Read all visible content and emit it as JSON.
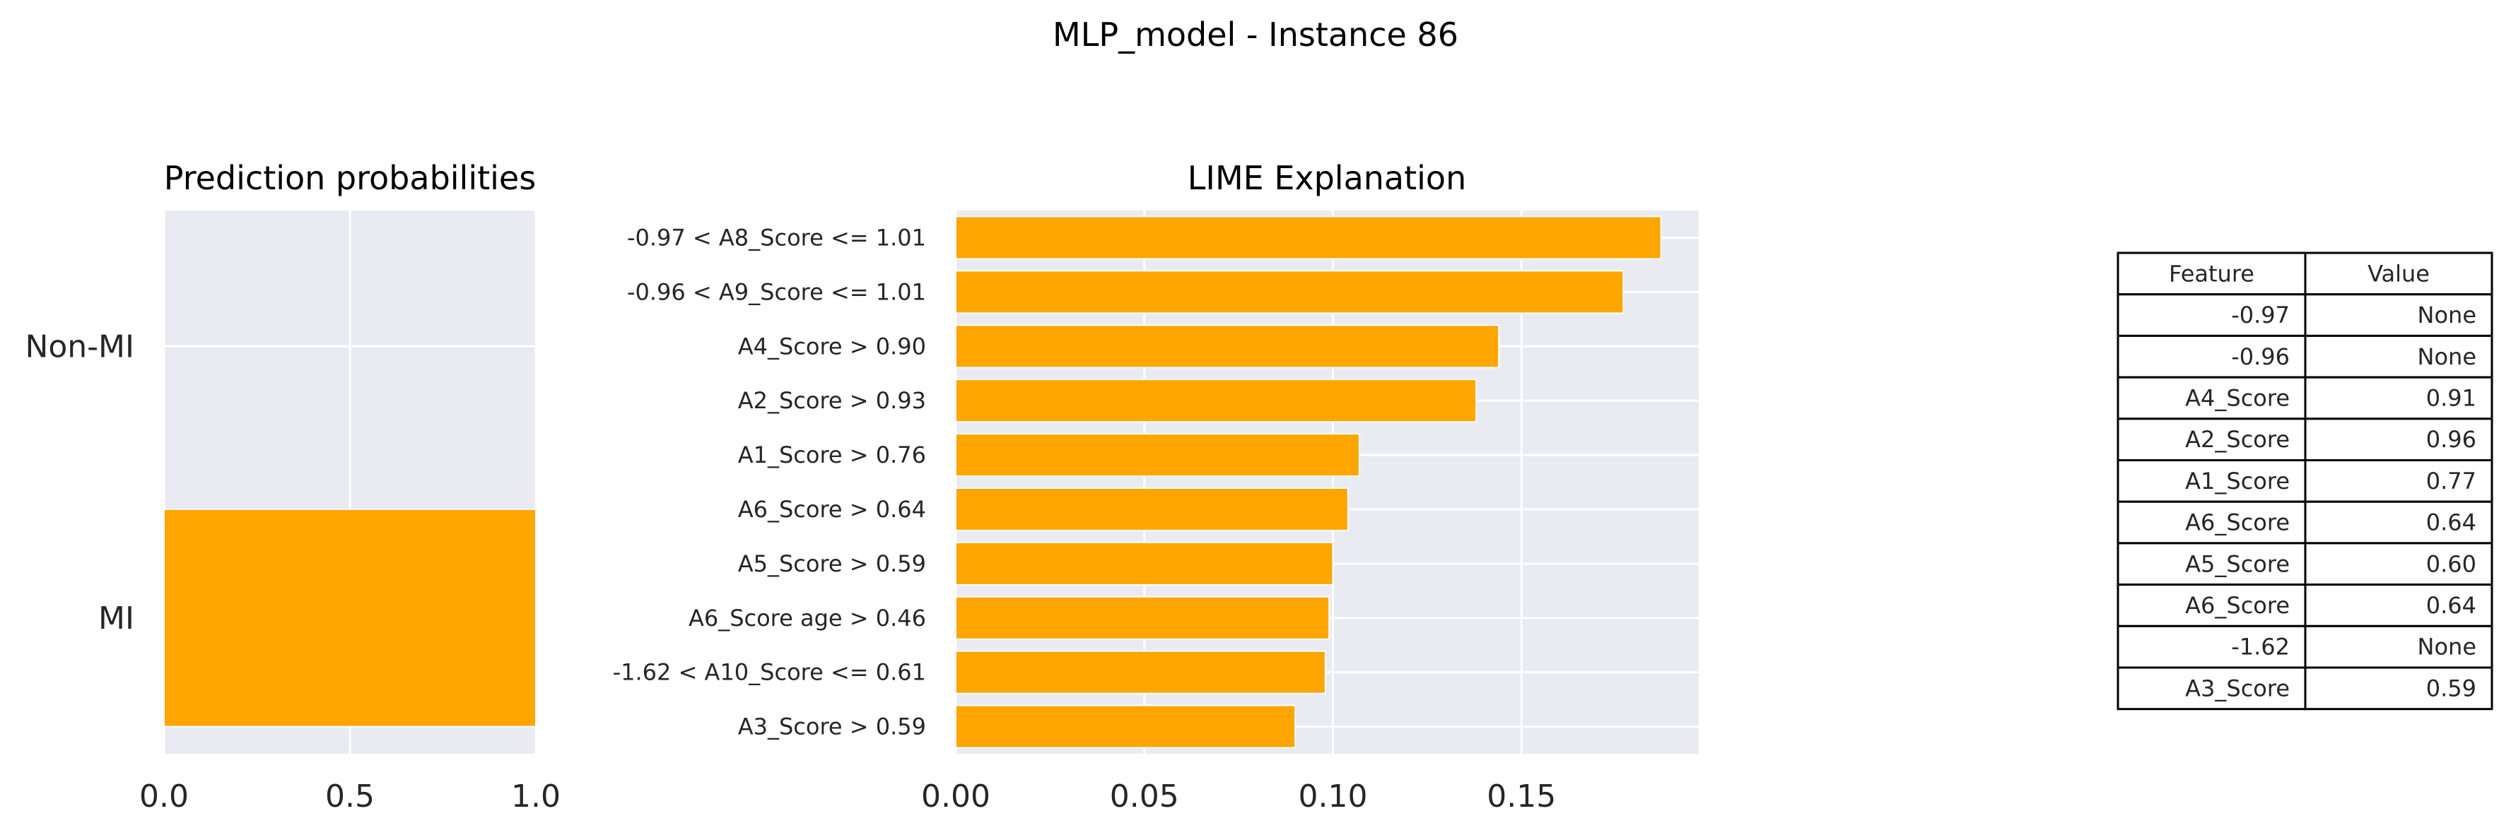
{
  "figure_title": "MLP_model - Instance 86",
  "chart_data": [
    {
      "type": "bar",
      "orientation": "horizontal",
      "title": "Prediction probabilities",
      "categories": [
        "Non-MI",
        "MI"
      ],
      "values": [
        0.0,
        1.0
      ],
      "xlim": [
        0,
        1
      ],
      "xticks": [
        "0.0",
        "0.5",
        "1.0"
      ],
      "grid": true,
      "colors": {
        "bar": "#FFA500",
        "background": "#EAEAF2",
        "grid": "#FFFFFF"
      }
    },
    {
      "type": "bar",
      "orientation": "horizontal",
      "title": "LIME Explanation",
      "categories": [
        "-0.97 < A8_Score <= 1.01",
        "-0.96 < A9_Score <= 1.01",
        "A4_Score > 0.90",
        "A2_Score > 0.93",
        "A1_Score > 0.76",
        "A6_Score > 0.64",
        "A5_Score > 0.59",
        "A6_Score age > 0.46",
        "-1.62 < A10_Score <= 0.61",
        "A3_Score > 0.59"
      ],
      "values": [
        0.187,
        0.177,
        0.144,
        0.138,
        0.107,
        0.104,
        0.1,
        0.099,
        0.098,
        0.09
      ],
      "xlim": [
        0,
        0.197
      ],
      "xticks": [
        "0.00",
        "0.05",
        "0.10",
        "0.15"
      ],
      "grid": true,
      "colors": {
        "bar": "#FFA500",
        "background": "#EAEAF2",
        "grid": "#FFFFFF"
      }
    },
    {
      "type": "table",
      "columns": [
        "Feature",
        "Value"
      ],
      "rows": [
        [
          "-0.97",
          "None"
        ],
        [
          "-0.96",
          "None"
        ],
        [
          "A4_Score",
          "0.91"
        ],
        [
          "A2_Score",
          "0.96"
        ],
        [
          "A1_Score",
          "0.77"
        ],
        [
          "A6_Score",
          "0.64"
        ],
        [
          "A5_Score",
          "0.60"
        ],
        [
          "A6_Score",
          "0.64"
        ],
        [
          "-1.62",
          "None"
        ],
        [
          "A3_Score",
          "0.59"
        ]
      ]
    }
  ]
}
